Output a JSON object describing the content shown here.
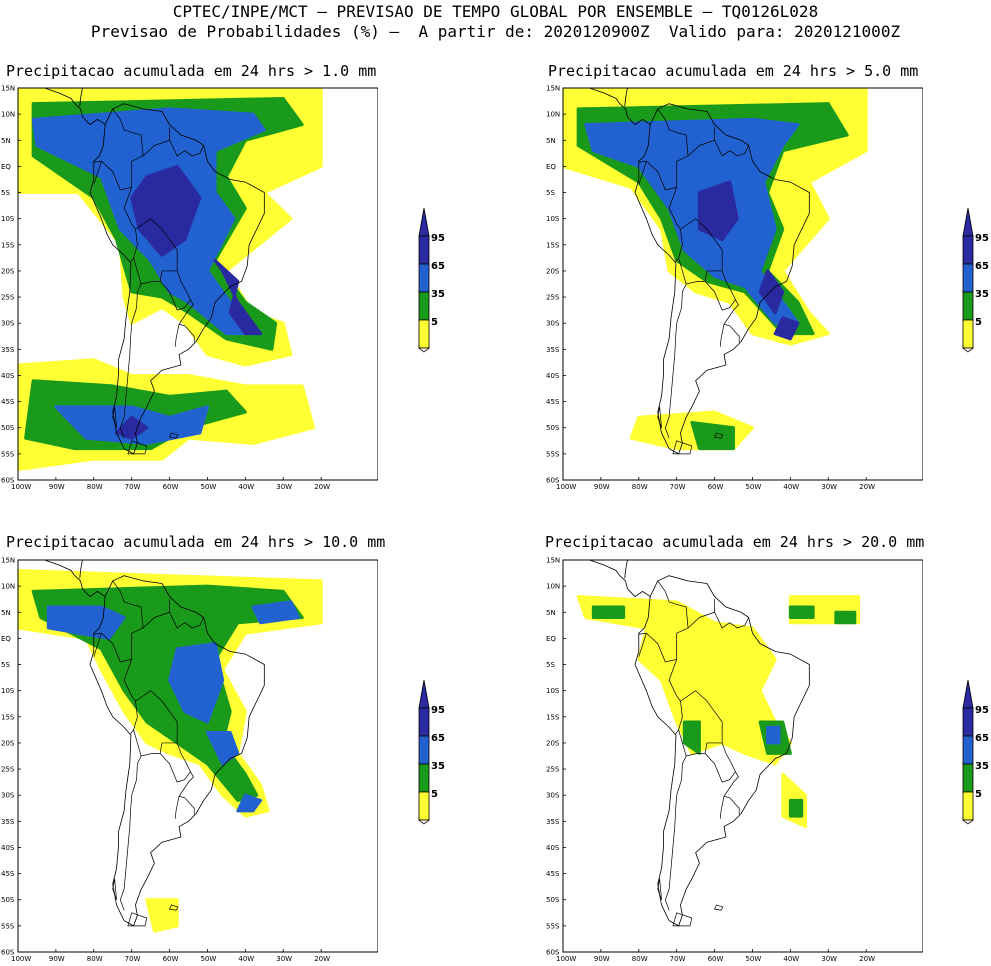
{
  "header": {
    "line1": "CPTEC/INPE/MCT – PREVISAO DE TEMPO GLOBAL POR ENSEMBLE – TQ0126L028",
    "line2": "Previsao de Probabilidades (%) –  A partir de: 2020120900Z  Valido para: 2020121000Z"
  },
  "panels": [
    {
      "title": "Precipitacao acumulada em 24 hrs > 1.0 mm",
      "coverage": "very_high"
    },
    {
      "title": "Precipitacao acumulada em 24 hrs > 5.0 mm",
      "coverage": "high"
    },
    {
      "title": "Precipitacao acumulada em 24 hrs > 10.0 mm",
      "coverage": "medium"
    },
    {
      "title": "Precipitacao acumulada em 24 hrs > 20.0 mm",
      "coverage": "low"
    }
  ],
  "lat_labels": [
    "15N",
    "10N",
    "5N",
    "EQ",
    "5S",
    "10S",
    "15S",
    "20S",
    "25S",
    "30S",
    "35S",
    "40S",
    "45S",
    "50S",
    "55S",
    "60S"
  ],
  "lon_labels": [
    "100W",
    "90W",
    "80W",
    "70W",
    "60W",
    "50W",
    "40W",
    "30W",
    "20W"
  ],
  "colorbar": {
    "levels": [
      "95",
      "65",
      "35",
      "5"
    ],
    "colors": {
      "c95": "#2a2aa0",
      "c65": "#2262d0",
      "c35": "#1a9a1a",
      "c5": "#ffff33"
    }
  }
}
